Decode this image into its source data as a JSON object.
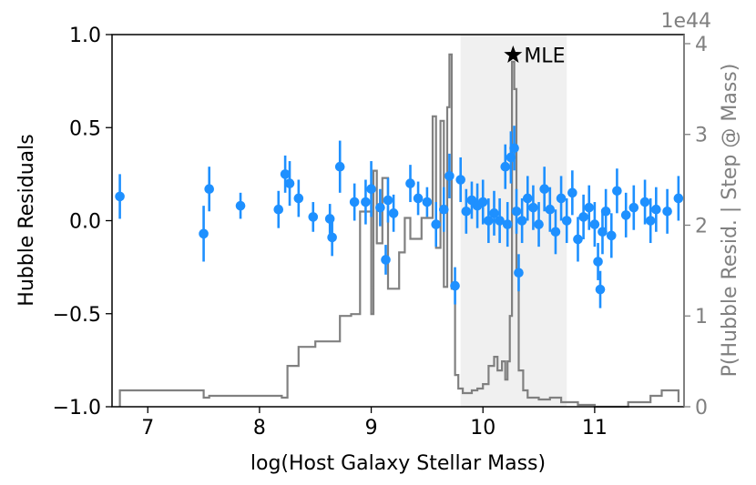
{
  "chart_data": {
    "type": "scatter",
    "title": "",
    "xlabel": "log(Host Galaxy Stellar Mass)",
    "ylabel": "Hubble Residuals",
    "ylabel_right": "P(Hubble Resid. | Step @ Mass)",
    "right_axis_multiplier": "1e44",
    "xlim": [
      6.68,
      11.8
    ],
    "ylim": [
      -1.0,
      1.0
    ],
    "ylim_right": [
      0,
      4.1
    ],
    "x_ticks": [
      7,
      8,
      9,
      10,
      11
    ],
    "y_ticks": [
      -1.0,
      -0.5,
      0.0,
      0.5,
      1.0
    ],
    "y_tick_labels": [
      "−1.0",
      "−0.5",
      "0.0",
      "0.5",
      "1.0"
    ],
    "y_ticks_right": [
      0,
      1,
      2,
      3,
      4
    ],
    "grid": false,
    "colors": {
      "points": "#1e90ff",
      "posterior": "#808080",
      "band": "#f0f0f0",
      "axes": "#000000",
      "right_axis": "#808080"
    },
    "shaded_region": {
      "x": [
        9.8,
        10.75
      ]
    },
    "mle": {
      "x": 10.27,
      "y": 0.89,
      "label": "MLE"
    },
    "points": [
      {
        "x": 6.75,
        "y": 0.13,
        "err": 0.12
      },
      {
        "x": 7.5,
        "y": -0.07,
        "err": 0.15
      },
      {
        "x": 7.55,
        "y": 0.17,
        "err": 0.12
      },
      {
        "x": 7.83,
        "y": 0.08,
        "err": 0.07
      },
      {
        "x": 8.17,
        "y": 0.06,
        "err": 0.1
      },
      {
        "x": 8.23,
        "y": 0.25,
        "err": 0.1
      },
      {
        "x": 8.27,
        "y": 0.2,
        "err": 0.12
      },
      {
        "x": 8.35,
        "y": 0.12,
        "err": 0.1
      },
      {
        "x": 8.48,
        "y": 0.02,
        "err": 0.08
      },
      {
        "x": 8.63,
        "y": 0.01,
        "err": 0.08
      },
      {
        "x": 8.65,
        "y": -0.09,
        "err": 0.1
      },
      {
        "x": 8.72,
        "y": 0.29,
        "err": 0.14
      },
      {
        "x": 8.85,
        "y": 0.1,
        "err": 0.1
      },
      {
        "x": 8.95,
        "y": 0.1,
        "err": 0.12
      },
      {
        "x": 9.0,
        "y": 0.17,
        "err": 0.15
      },
      {
        "x": 9.08,
        "y": 0.07,
        "err": 0.1
      },
      {
        "x": 9.13,
        "y": -0.21,
        "err": 0.08
      },
      {
        "x": 9.15,
        "y": 0.11,
        "err": 0.12
      },
      {
        "x": 9.2,
        "y": 0.04,
        "err": 0.1
      },
      {
        "x": 9.35,
        "y": 0.2,
        "err": 0.1
      },
      {
        "x": 9.42,
        "y": 0.12,
        "err": 0.09
      },
      {
        "x": 9.5,
        "y": 0.1,
        "err": 0.08
      },
      {
        "x": 9.58,
        "y": -0.02,
        "err": 0.12
      },
      {
        "x": 9.65,
        "y": 0.06,
        "err": 0.12
      },
      {
        "x": 9.7,
        "y": 0.24,
        "err": 0.12
      },
      {
        "x": 9.75,
        "y": -0.35,
        "err": 0.1
      },
      {
        "x": 9.8,
        "y": 0.22,
        "err": 0.12
      },
      {
        "x": 9.85,
        "y": 0.05,
        "err": 0.12
      },
      {
        "x": 9.9,
        "y": 0.11,
        "err": 0.1
      },
      {
        "x": 9.95,
        "y": 0.08,
        "err": 0.12
      },
      {
        "x": 10.0,
        "y": 0.1,
        "err": 0.12
      },
      {
        "x": 10.05,
        "y": 0.0,
        "err": 0.12
      },
      {
        "x": 10.1,
        "y": 0.04,
        "err": 0.12
      },
      {
        "x": 10.15,
        "y": 0.0,
        "err": 0.12
      },
      {
        "x": 10.2,
        "y": 0.29,
        "err": 0.12
      },
      {
        "x": 10.22,
        "y": -0.02,
        "err": 0.12
      },
      {
        "x": 10.25,
        "y": 0.34,
        "err": 0.14
      },
      {
        "x": 10.28,
        "y": 0.39,
        "err": 0.12
      },
      {
        "x": 10.3,
        "y": 0.05,
        "err": 0.12
      },
      {
        "x": 10.32,
        "y": -0.28,
        "err": 0.1
      },
      {
        "x": 10.35,
        "y": 0.0,
        "err": 0.12
      },
      {
        "x": 10.4,
        "y": 0.12,
        "err": 0.12
      },
      {
        "x": 10.45,
        "y": 0.07,
        "err": 0.12
      },
      {
        "x": 10.5,
        "y": -0.02,
        "err": 0.12
      },
      {
        "x": 10.55,
        "y": 0.17,
        "err": 0.12
      },
      {
        "x": 10.6,
        "y": 0.06,
        "err": 0.12
      },
      {
        "x": 10.65,
        "y": -0.06,
        "err": 0.12
      },
      {
        "x": 10.7,
        "y": 0.12,
        "err": 0.12
      },
      {
        "x": 10.75,
        "y": 0.0,
        "err": 0.12
      },
      {
        "x": 10.8,
        "y": 0.15,
        "err": 0.12
      },
      {
        "x": 10.85,
        "y": -0.1,
        "err": 0.12
      },
      {
        "x": 10.9,
        "y": 0.02,
        "err": 0.12
      },
      {
        "x": 10.95,
        "y": 0.07,
        "err": 0.12
      },
      {
        "x": 11.0,
        "y": -0.02,
        "err": 0.12
      },
      {
        "x": 11.03,
        "y": -0.22,
        "err": 0.1
      },
      {
        "x": 11.05,
        "y": -0.37,
        "err": 0.1
      },
      {
        "x": 11.07,
        "y": -0.06,
        "err": 0.12
      },
      {
        "x": 11.1,
        "y": 0.05,
        "err": 0.12
      },
      {
        "x": 11.15,
        "y": -0.08,
        "err": 0.12
      },
      {
        "x": 11.2,
        "y": 0.16,
        "err": 0.12
      },
      {
        "x": 11.28,
        "y": 0.03,
        "err": 0.12
      },
      {
        "x": 11.35,
        "y": 0.07,
        "err": 0.12
      },
      {
        "x": 11.45,
        "y": 0.1,
        "err": 0.12
      },
      {
        "x": 11.5,
        "y": 0.0,
        "err": 0.12
      },
      {
        "x": 11.55,
        "y": 0.06,
        "err": 0.12
      },
      {
        "x": 11.65,
        "y": 0.05,
        "err": 0.12
      },
      {
        "x": 11.75,
        "y": 0.12,
        "err": 0.12
      }
    ],
    "posterior_line": [
      [
        6.75,
        0.0
      ],
      [
        6.75,
        0.18
      ],
      [
        7.5,
        0.18
      ],
      [
        7.5,
        0.1
      ],
      [
        7.55,
        0.1
      ],
      [
        7.55,
        0.12
      ],
      [
        8.2,
        0.12
      ],
      [
        8.2,
        0.1
      ],
      [
        8.25,
        0.1
      ],
      [
        8.25,
        0.45
      ],
      [
        8.35,
        0.45
      ],
      [
        8.35,
        0.66
      ],
      [
        8.5,
        0.66
      ],
      [
        8.5,
        0.72
      ],
      [
        8.72,
        0.72
      ],
      [
        8.72,
        1.0
      ],
      [
        8.82,
        1.0
      ],
      [
        8.82,
        1.02
      ],
      [
        8.9,
        1.02
      ],
      [
        8.9,
        2.15
      ],
      [
        9.0,
        2.15
      ],
      [
        9.0,
        1.02
      ],
      [
        9.02,
        1.02
      ],
      [
        9.02,
        2.6
      ],
      [
        9.05,
        2.6
      ],
      [
        9.05,
        1.8
      ],
      [
        9.1,
        1.8
      ],
      [
        9.1,
        2.52
      ],
      [
        9.15,
        2.52
      ],
      [
        9.15,
        1.3
      ],
      [
        9.25,
        1.3
      ],
      [
        9.25,
        1.7
      ],
      [
        9.3,
        1.7
      ],
      [
        9.3,
        2.08
      ],
      [
        9.35,
        2.08
      ],
      [
        9.35,
        1.85
      ],
      [
        9.45,
        1.85
      ],
      [
        9.45,
        2.08
      ],
      [
        9.55,
        2.08
      ],
      [
        9.55,
        3.2
      ],
      [
        9.58,
        3.2
      ],
      [
        9.58,
        1.75
      ],
      [
        9.62,
        1.75
      ],
      [
        9.62,
        3.15
      ],
      [
        9.65,
        3.15
      ],
      [
        9.65,
        1.32
      ],
      [
        9.68,
        1.32
      ],
      [
        9.68,
        3.3
      ],
      [
        9.7,
        3.3
      ],
      [
        9.7,
        3.88
      ],
      [
        9.72,
        3.88
      ],
      [
        9.72,
        1.3
      ],
      [
        9.75,
        1.3
      ],
      [
        9.75,
        0.35
      ],
      [
        9.78,
        0.35
      ],
      [
        9.78,
        0.2
      ],
      [
        9.82,
        0.2
      ],
      [
        9.82,
        0.15
      ],
      [
        9.9,
        0.15
      ],
      [
        9.9,
        0.18
      ],
      [
        9.95,
        0.18
      ],
      [
        9.95,
        0.2
      ],
      [
        10.0,
        0.2
      ],
      [
        10.0,
        0.25
      ],
      [
        10.05,
        0.25
      ],
      [
        10.05,
        0.45
      ],
      [
        10.1,
        0.45
      ],
      [
        10.1,
        0.55
      ],
      [
        10.13,
        0.55
      ],
      [
        10.13,
        0.4
      ],
      [
        10.17,
        0.4
      ],
      [
        10.17,
        0.5
      ],
      [
        10.2,
        0.5
      ],
      [
        10.2,
        0.3
      ],
      [
        10.22,
        0.3
      ],
      [
        10.22,
        0.5
      ],
      [
        10.24,
        0.5
      ],
      [
        10.24,
        1.0
      ],
      [
        10.26,
        1.0
      ],
      [
        10.26,
        3.8
      ],
      [
        10.28,
        3.8
      ],
      [
        10.28,
        3.5
      ],
      [
        10.3,
        3.5
      ],
      [
        10.3,
        1.5
      ],
      [
        10.32,
        1.5
      ],
      [
        10.32,
        0.4
      ],
      [
        10.36,
        0.4
      ],
      [
        10.36,
        0.18
      ],
      [
        10.4,
        0.18
      ],
      [
        10.4,
        0.1
      ],
      [
        10.5,
        0.1
      ],
      [
        10.5,
        0.08
      ],
      [
        10.6,
        0.08
      ],
      [
        10.6,
        0.1
      ],
      [
        10.7,
        0.1
      ],
      [
        10.7,
        0.05
      ],
      [
        10.85,
        0.05
      ],
      [
        10.85,
        0.02
      ],
      [
        11.0,
        0.02
      ],
      [
        11.0,
        0.0
      ],
      [
        11.3,
        0.0
      ],
      [
        11.3,
        0.05
      ],
      [
        11.5,
        0.05
      ],
      [
        11.5,
        0.12
      ],
      [
        11.6,
        0.12
      ],
      [
        11.6,
        0.18
      ],
      [
        11.75,
        0.18
      ],
      [
        11.75,
        0.05
      ]
    ]
  }
}
